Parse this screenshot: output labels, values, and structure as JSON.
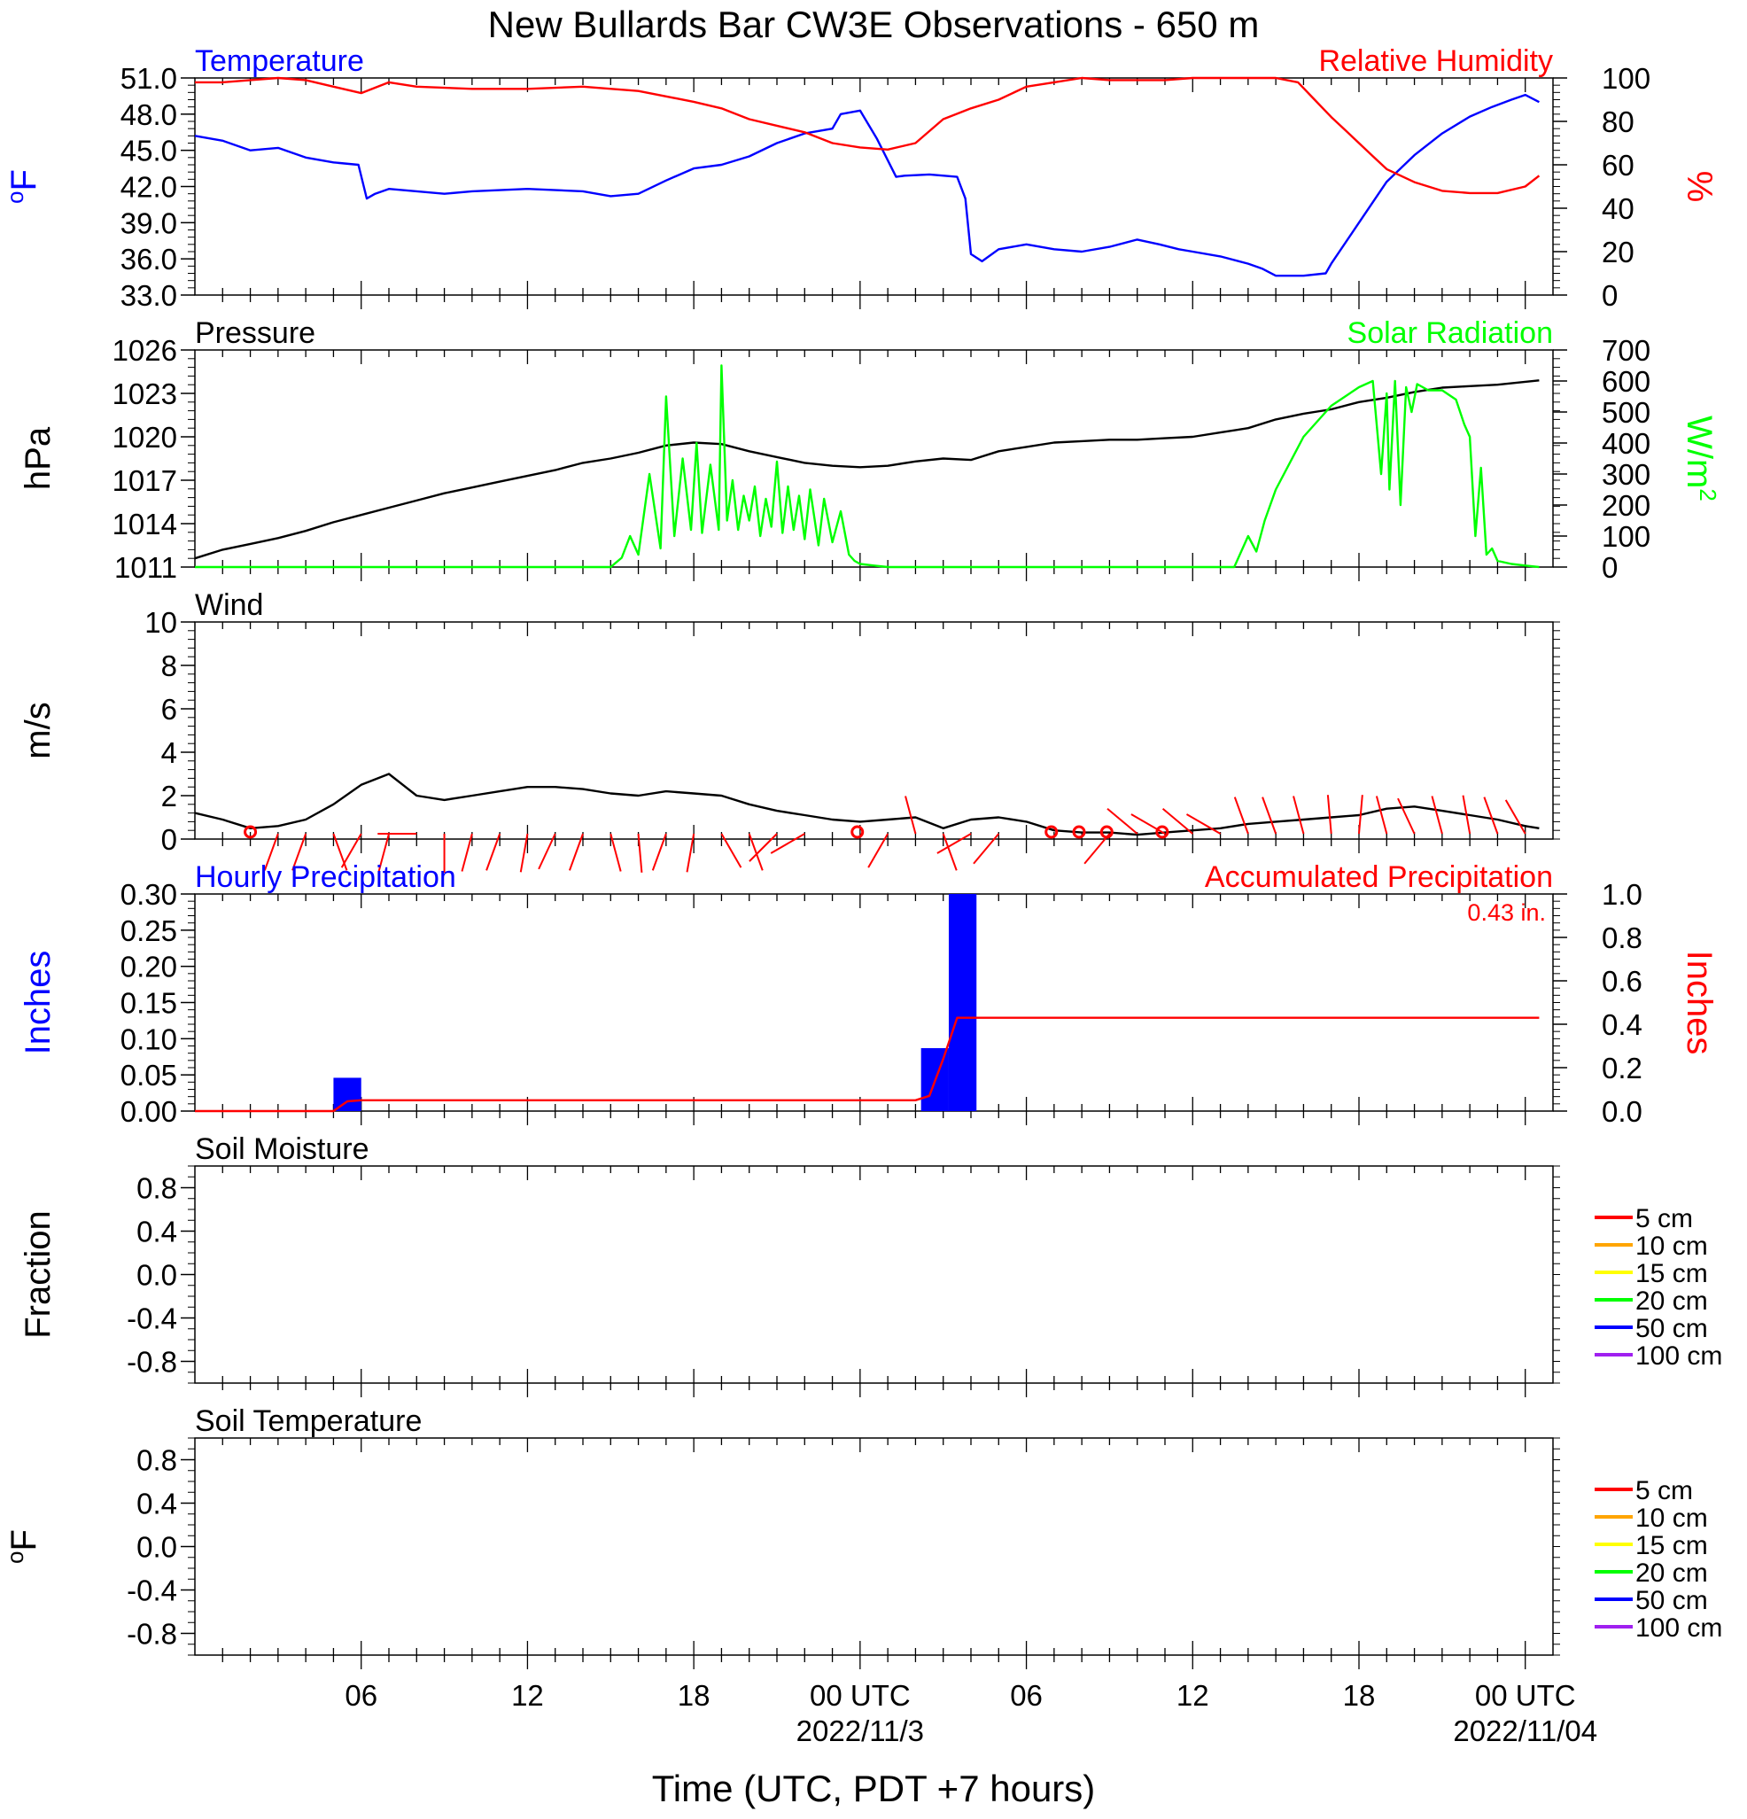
{
  "page": {
    "title": "New Bullards Bar CW3E Observations - 650 m",
    "xlabel": "Time (UTC, PDT +7 hours)"
  },
  "colors": {
    "black": "#000000",
    "blue": "#0000ff",
    "red": "#ff0000",
    "green": "#00ff00",
    "orange": "#ffa500",
    "yellow": "#ffff00",
    "purple": "#a020f0"
  },
  "x_axis": {
    "range": [
      0,
      49
    ],
    "unit": "hours since 2022-11-02 00 UTC",
    "major_ticks": [
      6,
      12,
      18,
      24,
      30,
      36,
      42,
      48
    ],
    "tick_labels": [
      "06",
      "12",
      "18",
      "00 UTC",
      "06",
      "12",
      "18",
      "00 UTC"
    ],
    "date_labels": [
      {
        "x": 24,
        "text": "2022/11/3"
      },
      {
        "x": 48,
        "text": "2022/11/04"
      }
    ]
  },
  "chart_data": [
    {
      "id": "temp_rh",
      "type": "line",
      "title_left": "Temperature",
      "title_right": "Relative Humidity",
      "ylabel_left": "oF",
      "ylabel_right": "%",
      "ylim_left": [
        33,
        51
      ],
      "ylim_right": [
        0,
        100
      ],
      "yticks_left": [
        "33.0",
        "36.0",
        "39.0",
        "42.0",
        "45.0",
        "48.0",
        "51.0"
      ],
      "yticks_right": [
        "0",
        "20",
        "40",
        "60",
        "80",
        "100"
      ],
      "series": [
        {
          "name": "Temperature",
          "axis": "left",
          "color": "#0000ff",
          "x": [
            0,
            1,
            2,
            3,
            4,
            5,
            5.9,
            6.2,
            6.5,
            7,
            8,
            9,
            10,
            12,
            14,
            15,
            16,
            17,
            18,
            19,
            20,
            21,
            22,
            23,
            23.3,
            24,
            24.6,
            25.3,
            25.6,
            26.5,
            27.5,
            27.8,
            28,
            28.4,
            29,
            30,
            31,
            32,
            33,
            34,
            34.8,
            35.5,
            36,
            37,
            38,
            38.5,
            39,
            40,
            40.8,
            41,
            42,
            43,
            44,
            45,
            46,
            46.8,
            47.5,
            48,
            48.5
          ],
          "y": [
            46.2,
            45.8,
            45.0,
            45.2,
            44.4,
            44.0,
            43.8,
            41.0,
            41.4,
            41.8,
            41.6,
            41.4,
            41.6,
            41.8,
            41.6,
            41.2,
            41.4,
            42.5,
            43.5,
            43.8,
            44.5,
            45.6,
            46.4,
            46.8,
            48.0,
            48.3,
            46.0,
            42.8,
            42.9,
            43.0,
            42.8,
            41.0,
            36.4,
            35.8,
            36.8,
            37.2,
            36.8,
            36.6,
            37.0,
            37.6,
            37.2,
            36.8,
            36.6,
            36.2,
            35.6,
            35.2,
            34.6,
            34.6,
            34.8,
            35.6,
            39.0,
            42.4,
            44.6,
            46.4,
            47.8,
            48.6,
            49.2,
            49.6,
            49.0
          ]
        },
        {
          "name": "Relative Humidity",
          "axis": "right",
          "color": "#ff0000",
          "x": [
            0,
            1,
            2,
            3,
            4,
            5,
            6,
            7,
            8,
            10,
            12,
            14,
            16,
            18,
            19,
            20,
            21,
            22,
            23,
            24,
            25,
            26,
            27,
            28,
            29,
            30,
            31,
            32,
            33,
            34,
            35,
            36,
            37,
            38,
            39,
            39.8,
            40.4,
            41,
            41.5,
            42,
            42.5,
            43,
            44,
            45,
            46,
            47,
            48,
            48.5
          ],
          "y": [
            98,
            98,
            99,
            100,
            99,
            96,
            93,
            98,
            96,
            95,
            95,
            96,
            94,
            89,
            86,
            81,
            78,
            75,
            70,
            68,
            67,
            70,
            81,
            86,
            90,
            96,
            98,
            100,
            99,
            99,
            99,
            100,
            100,
            100,
            100,
            98,
            90,
            82,
            76,
            70,
            64,
            58,
            52,
            48,
            47,
            47,
            50,
            55
          ]
        }
      ]
    },
    {
      "id": "pressure_solar",
      "type": "line",
      "title_left": "Pressure",
      "title_right": "Solar Radiation",
      "ylabel_left": "hPa",
      "ylabel_right": "W/m2",
      "ylim_left": [
        1011,
        1026
      ],
      "ylim_right": [
        0,
        700
      ],
      "yticks_left": [
        "1011",
        "1014",
        "1017",
        "1020",
        "1023",
        "1026"
      ],
      "yticks_right": [
        "0",
        "100",
        "200",
        "300",
        "400",
        "500",
        "600",
        "700"
      ],
      "series": [
        {
          "name": "Pressure",
          "axis": "left",
          "color": "#000000",
          "x": [
            0,
            1,
            2,
            3,
            4,
            5,
            6,
            7,
            8,
            9,
            10,
            11,
            12,
            13,
            14,
            15,
            16,
            17,
            18,
            19,
            20,
            21,
            22,
            23,
            24,
            25,
            26,
            27,
            28,
            29,
            30,
            31,
            32,
            33,
            34,
            35,
            36,
            37,
            38,
            39,
            40,
            41,
            42,
            43,
            44,
            45,
            46,
            47,
            48,
            48.5
          ],
          "y": [
            1011.6,
            1012.2,
            1012.6,
            1013.0,
            1013.5,
            1014.1,
            1014.6,
            1015.1,
            1015.6,
            1016.1,
            1016.5,
            1016.9,
            1017.3,
            1017.7,
            1018.2,
            1018.5,
            1018.9,
            1019.4,
            1019.6,
            1019.5,
            1019.0,
            1018.6,
            1018.2,
            1018.0,
            1017.9,
            1018.0,
            1018.3,
            1018.5,
            1018.4,
            1019.0,
            1019.3,
            1019.6,
            1019.7,
            1019.8,
            1019.8,
            1019.9,
            1020.0,
            1020.3,
            1020.6,
            1021.2,
            1021.6,
            1021.9,
            1022.4,
            1022.7,
            1023.1,
            1023.4,
            1023.5,
            1023.6,
            1023.8,
            1023.9
          ]
        },
        {
          "name": "Solar Radiation",
          "axis": "right",
          "color": "#00ff00",
          "x": [
            0,
            14,
            15,
            15.4,
            15.7,
            16,
            16.4,
            16.8,
            17,
            17.3,
            17.6,
            17.9,
            18.1,
            18.3,
            18.6,
            18.9,
            19,
            19.2,
            19.4,
            19.6,
            19.8,
            20,
            20.2,
            20.4,
            20.6,
            20.8,
            21,
            21.2,
            21.4,
            21.6,
            21.8,
            22,
            22.2,
            22.5,
            22.7,
            23,
            23.3,
            23.6,
            23.8,
            24,
            24.5,
            25,
            30,
            33,
            37.5,
            38,
            38.3,
            38.6,
            39,
            40,
            41,
            42,
            42.5,
            42.8,
            43,
            43.1,
            43.3,
            43.5,
            43.7,
            43.9,
            44.1,
            44.3,
            44.5,
            45,
            45.5,
            45.8,
            46,
            46.2,
            46.4,
            46.6,
            46.8,
            47,
            47.5,
            48,
            48.5
          ],
          "y": [
            0,
            0,
            0,
            30,
            100,
            40,
            300,
            60,
            550,
            100,
            350,
            120,
            400,
            110,
            330,
            120,
            650,
            150,
            280,
            120,
            230,
            150,
            260,
            100,
            220,
            130,
            340,
            110,
            260,
            120,
            230,
            90,
            250,
            70,
            220,
            80,
            180,
            40,
            20,
            10,
            5,
            0,
            0,
            0,
            0,
            100,
            50,
            150,
            250,
            420,
            520,
            580,
            600,
            300,
            560,
            250,
            600,
            200,
            580,
            500,
            590,
            580,
            570,
            570,
            540,
            460,
            420,
            100,
            320,
            40,
            60,
            20,
            10,
            5,
            0
          ]
        }
      ]
    },
    {
      "id": "wind",
      "type": "line",
      "title_left": "Wind",
      "ylabel_left": "m/s",
      "ylim_left": [
        0,
        10
      ],
      "yticks_left": [
        "0",
        "2",
        "4",
        "6",
        "8",
        "10"
      ],
      "series": [
        {
          "name": "Wind",
          "axis": "left",
          "color": "#000000",
          "x": [
            0,
            1,
            2,
            3,
            4,
            5,
            6,
            7,
            8,
            9,
            10,
            11,
            12,
            13,
            14,
            15,
            16,
            17,
            18,
            19,
            20,
            21,
            22,
            23,
            24,
            25,
            26,
            27,
            28,
            29,
            30,
            31,
            32,
            33,
            34,
            35,
            36,
            37,
            38,
            39,
            40,
            41,
            42,
            43,
            44,
            45,
            46,
            47,
            48,
            48.5
          ],
          "y": [
            1.2,
            0.9,
            0.5,
            0.6,
            0.9,
            1.6,
            2.5,
            3.0,
            2.0,
            1.8,
            2.0,
            2.2,
            2.4,
            2.4,
            2.3,
            2.1,
            2.0,
            2.2,
            2.1,
            2.0,
            1.6,
            1.3,
            1.1,
            0.9,
            0.8,
            0.9,
            1.0,
            0.5,
            0.9,
            1.0,
            0.8,
            0.4,
            0.3,
            0.3,
            0.2,
            0.3,
            0.4,
            0.5,
            0.7,
            0.8,
            0.9,
            1.0,
            1.1,
            1.4,
            1.5,
            1.3,
            1.1,
            0.9,
            0.6,
            0.5
          ]
        }
      ],
      "calm_markers_x": [
        2,
        23.9,
        30.9,
        31.9,
        32.9,
        34.9
      ],
      "wind_barbs": [
        {
          "x": 3.0,
          "dir": 200
        },
        {
          "x": 4.0,
          "dir": 200
        },
        {
          "x": 5.0,
          "dir": 160
        },
        {
          "x": 6.0,
          "dir": 210
        },
        {
          "x": 7.0,
          "dir": 195
        },
        {
          "x": 8.0,
          "dir": 270
        },
        {
          "x": 9.0,
          "dir": 180
        },
        {
          "x": 10.0,
          "dir": 195
        },
        {
          "x": 11.0,
          "dir": 200
        },
        {
          "x": 12.0,
          "dir": 190
        },
        {
          "x": 13.0,
          "dir": 205
        },
        {
          "x": 14.0,
          "dir": 200
        },
        {
          "x": 15.0,
          "dir": 165
        },
        {
          "x": 16.0,
          "dir": 175
        },
        {
          "x": 17.0,
          "dir": 200
        },
        {
          "x": 18.0,
          "dir": 190
        },
        {
          "x": 19.0,
          "dir": 150
        },
        {
          "x": 20.0,
          "dir": 160
        },
        {
          "x": 21.0,
          "dir": 225
        },
        {
          "x": 22.0,
          "dir": 240
        },
        {
          "x": 25.0,
          "dir": 210
        },
        {
          "x": 26.0,
          "dir": 345
        },
        {
          "x": 27.0,
          "dir": 160
        },
        {
          "x": 28.0,
          "dir": 240
        },
        {
          "x": 29.0,
          "dir": 220
        },
        {
          "x": 33.0,
          "dir": 220
        },
        {
          "x": 34.0,
          "dir": 310
        },
        {
          "x": 35.0,
          "dir": 300
        },
        {
          "x": 36.0,
          "dir": 310
        },
        {
          "x": 37.0,
          "dir": 300
        },
        {
          "x": 38.0,
          "dir": 340
        },
        {
          "x": 39.0,
          "dir": 340
        },
        {
          "x": 40.0,
          "dir": 345
        },
        {
          "x": 41.0,
          "dir": 355
        },
        {
          "x": 42.0,
          "dir": 5
        },
        {
          "x": 43.0,
          "dir": 345
        },
        {
          "x": 44.0,
          "dir": 335
        },
        {
          "x": 45.0,
          "dir": 345
        },
        {
          "x": 46.0,
          "dir": 350
        },
        {
          "x": 47.0,
          "dir": 340
        },
        {
          "x": 48.0,
          "dir": 330
        }
      ]
    },
    {
      "id": "precip",
      "type": "bar",
      "title_left": "Hourly Precipitation",
      "title_right": "Accumulated Precipitation",
      "annotation": "0.43 in.",
      "ylabel_left": "Inches",
      "ylabel_right": "Inches",
      "ylim_left": [
        0,
        0.3
      ],
      "ylim_right": [
        0,
        1.0
      ],
      "yticks_left": [
        "0.00",
        "0.05",
        "0.10",
        "0.15",
        "0.20",
        "0.25",
        "0.30"
      ],
      "yticks_right": [
        "0.0",
        "0.2",
        "0.4",
        "0.6",
        "0.8",
        "1.0"
      ],
      "hourly_bars": [
        {
          "start": 5.0,
          "end": 6.0,
          "value": 0.046
        },
        {
          "start": 26.2,
          "end": 27.2,
          "value": 0.087
        },
        {
          "start": 27.2,
          "end": 28.2,
          "value": 0.3
        }
      ],
      "series": [
        {
          "name": "Accumulated Precipitation",
          "axis": "right",
          "color": "#ff0000",
          "x": [
            0,
            5.0,
            5.5,
            6.0,
            26.0,
            26.5,
            27.0,
            27.5,
            27.8,
            48.5
          ],
          "y": [
            0,
            0,
            0.045,
            0.05,
            0.05,
            0.07,
            0.24,
            0.43,
            0.43,
            0.43
          ]
        }
      ]
    },
    {
      "id": "soil_moisture",
      "type": "line",
      "title_left": "Soil Moisture",
      "ylabel_left": "Fraction",
      "ylim_left": [
        -1.0,
        1.0
      ],
      "yticks_left": [
        "-0.8",
        "-0.4",
        "0.0",
        "0.4",
        "0.8"
      ],
      "legend": [
        {
          "name": "5 cm",
          "color": "#ff0000"
        },
        {
          "name": "10 cm",
          "color": "#ffa500"
        },
        {
          "name": "15 cm",
          "color": "#ffff00"
        },
        {
          "name": "20 cm",
          "color": "#00ff00"
        },
        {
          "name": "50 cm",
          "color": "#0000ff"
        },
        {
          "name": "100 cm",
          "color": "#a020f0"
        }
      ],
      "series": []
    },
    {
      "id": "soil_temp",
      "type": "line",
      "title_left": "Soil Temperature",
      "ylabel_left": "oF",
      "ylim_left": [
        -1.0,
        1.0
      ],
      "yticks_left": [
        "-0.8",
        "-0.4",
        "0.0",
        "0.4",
        "0.8"
      ],
      "legend": [
        {
          "name": "5 cm",
          "color": "#ff0000"
        },
        {
          "name": "10 cm",
          "color": "#ffa500"
        },
        {
          "name": "15 cm",
          "color": "#ffff00"
        },
        {
          "name": "20 cm",
          "color": "#00ff00"
        },
        {
          "name": "50 cm",
          "color": "#0000ff"
        },
        {
          "name": "100 cm",
          "color": "#a020f0"
        }
      ],
      "series": []
    }
  ]
}
